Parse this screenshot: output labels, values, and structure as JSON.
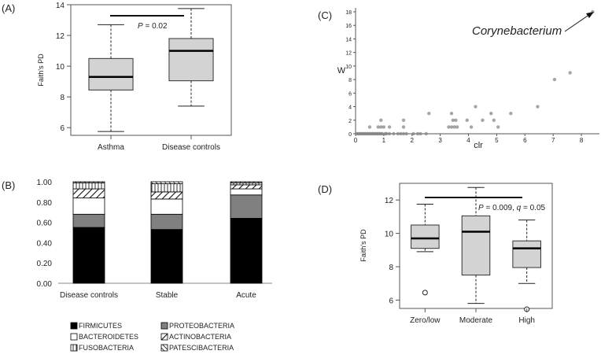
{
  "panels": {
    "A": {
      "label": "(A)"
    },
    "B": {
      "label": "(B)"
    },
    "C": {
      "label": "(C)"
    },
    "D": {
      "label": "(D)"
    }
  },
  "chart_data": [
    {
      "id": "A",
      "type": "box",
      "ylabel": "Faith's PD",
      "ylim": [
        5.5,
        14
      ],
      "yticks": [
        "6",
        "8",
        "10",
        "12",
        "14"
      ],
      "categories": [
        "Asthma",
        "Disease controls"
      ],
      "boxes": [
        {
          "name": "Asthma",
          "min": 5.75,
          "q1": 8.45,
          "median": 9.3,
          "q3": 10.5,
          "max": 12.7
        },
        {
          "name": "Disease controls",
          "min": 7.4,
          "q1": 9.05,
          "median": 11.0,
          "q3": 11.8,
          "max": 13.75
        }
      ],
      "annotation": {
        "prefix": "P",
        "text": " = 0.02"
      }
    },
    {
      "id": "B",
      "type": "stacked-bar",
      "ylim": [
        0,
        1
      ],
      "yticks": [
        "0.00",
        "0.20",
        "0.40",
        "0.60",
        "0.80",
        "1.00"
      ],
      "categories": [
        "Disease controls",
        "Stable",
        "Acute"
      ],
      "series": [
        {
          "name": "FIRMICUTES",
          "values": [
            0.55,
            0.53,
            0.64
          ]
        },
        {
          "name": "PROTEOBACTERIA",
          "values": [
            0.13,
            0.15,
            0.23
          ]
        },
        {
          "name": "BACTEROIDETES",
          "values": [
            0.16,
            0.15,
            0.06
          ]
        },
        {
          "name": "ACTINOBACTERIA",
          "values": [
            0.09,
            0.07,
            0.04
          ]
        },
        {
          "name": "FUSOBACTERIA",
          "values": [
            0.06,
            0.08,
            0.02
          ]
        },
        {
          "name": "PATESCIBACTERIA",
          "values": [
            0.01,
            0.02,
            0.01
          ]
        }
      ]
    },
    {
      "id": "C",
      "type": "scatter",
      "xlabel": "clr",
      "ylabel": "W",
      "xlim": [
        0,
        8.5
      ],
      "ylim": [
        0,
        18
      ],
      "xticks": [
        "0",
        "1",
        "2",
        "3",
        "4",
        "5",
        "6",
        "7",
        "8"
      ],
      "yticks": [
        "0",
        "2",
        "4",
        "6",
        "8",
        "10",
        "12",
        "14",
        "16",
        "18"
      ],
      "annotation": "Corynebacterium",
      "points": [
        [
          0.05,
          0
        ],
        [
          0.1,
          0
        ],
        [
          0.15,
          0
        ],
        [
          0.2,
          0
        ],
        [
          0.25,
          0
        ],
        [
          0.3,
          0
        ],
        [
          0.35,
          0
        ],
        [
          0.4,
          0
        ],
        [
          0.45,
          0
        ],
        [
          0.5,
          0
        ],
        [
          0.55,
          0
        ],
        [
          0.6,
          0
        ],
        [
          0.65,
          0
        ],
        [
          0.7,
          0
        ],
        [
          0.75,
          0
        ],
        [
          0.8,
          0
        ],
        [
          0.85,
          0
        ],
        [
          0.9,
          0
        ],
        [
          0.95,
          0
        ],
        [
          1.05,
          0
        ],
        [
          1.1,
          0
        ],
        [
          1.2,
          0
        ],
        [
          1.35,
          0
        ],
        [
          1.5,
          0
        ],
        [
          1.6,
          0
        ],
        [
          1.7,
          0
        ],
        [
          1.8,
          0
        ],
        [
          2.05,
          0
        ],
        [
          2.2,
          0
        ],
        [
          2.3,
          0
        ],
        [
          2.5,
          0
        ],
        [
          0.5,
          1
        ],
        [
          0.8,
          1
        ],
        [
          0.9,
          1
        ],
        [
          1.0,
          1
        ],
        [
          1.2,
          1
        ],
        [
          1.7,
          1
        ],
        [
          3.3,
          1
        ],
        [
          3.4,
          1
        ],
        [
          3.5,
          1
        ],
        [
          3.6,
          1
        ],
        [
          4.1,
          1
        ],
        [
          5.05,
          1
        ],
        [
          0.9,
          2
        ],
        [
          1.7,
          2
        ],
        [
          3.45,
          2
        ],
        [
          3.55,
          2
        ],
        [
          3.95,
          2
        ],
        [
          4.5,
          2
        ],
        [
          4.9,
          2
        ],
        [
          2.6,
          3
        ],
        [
          3.4,
          3
        ],
        [
          4.8,
          3
        ],
        [
          5.5,
          3
        ],
        [
          4.25,
          4
        ],
        [
          6.45,
          4
        ],
        [
          7.05,
          8
        ],
        [
          7.6,
          9
        ],
        [
          8.4,
          18
        ]
      ]
    },
    {
      "id": "D",
      "type": "box",
      "ylabel": "Faith's PD",
      "ylim": [
        5.5,
        13
      ],
      "yticks": [
        "6",
        "8",
        "10",
        "12"
      ],
      "categories": [
        "Zero/low",
        "Moderate",
        "High"
      ],
      "boxes": [
        {
          "name": "Zero/low",
          "min": 8.9,
          "q1": 9.1,
          "median": 9.7,
          "q3": 10.5,
          "max": 11.75,
          "outliers": [
            6.45
          ]
        },
        {
          "name": "Moderate",
          "min": 5.8,
          "q1": 7.5,
          "median": 10.1,
          "q3": 11.05,
          "max": 12.75,
          "outliers": []
        },
        {
          "name": "High",
          "min": 7.0,
          "q1": 7.95,
          "median": 9.1,
          "q3": 9.55,
          "max": 10.8,
          "outliers": [
            5.45
          ]
        }
      ],
      "annotation": {
        "p_prefix": "P",
        "p_text": " = 0.009, ",
        "q_prefix": "q",
        "q_text": " = 0.05"
      }
    }
  ]
}
